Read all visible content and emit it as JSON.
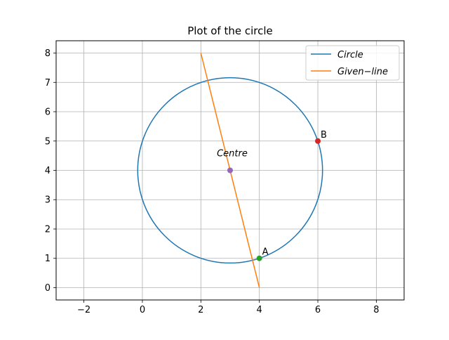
{
  "chart_data": {
    "type": "line",
    "title": "Plot of the circle",
    "xlabel": "",
    "ylabel": "",
    "xlim": [
      -2.95,
      8.95
    ],
    "ylim": [
      -0.42,
      8.42
    ],
    "xticks": [
      -2,
      0,
      2,
      4,
      6,
      8
    ],
    "yticks": [
      0,
      1,
      2,
      3,
      4,
      5,
      6,
      7,
      8
    ],
    "xtick_labels": [
      "−2",
      "0",
      "2",
      "4",
      "6",
      "8"
    ],
    "ytick_labels": [
      "0",
      "1",
      "2",
      "3",
      "4",
      "5",
      "6",
      "7",
      "8"
    ],
    "grid": true,
    "legend_position": "top-right",
    "series": [
      {
        "name": "Circle",
        "kind": "circle",
        "center": [
          3,
          4
        ],
        "radius": 3.16,
        "color": "#1f77b4"
      },
      {
        "name": "Given−line",
        "kind": "line",
        "x": [
          2,
          4
        ],
        "y": [
          8,
          0
        ],
        "color": "#ff7f0e"
      }
    ],
    "points": [
      {
        "label": "A",
        "x": 4,
        "y": 1,
        "color": "#2ca02c"
      },
      {
        "label": "B",
        "x": 6,
        "y": 5,
        "color": "#d62728"
      },
      {
        "label": "Centre",
        "x": 3,
        "y": 4,
        "color": "#9467bd",
        "italic": true
      }
    ]
  }
}
